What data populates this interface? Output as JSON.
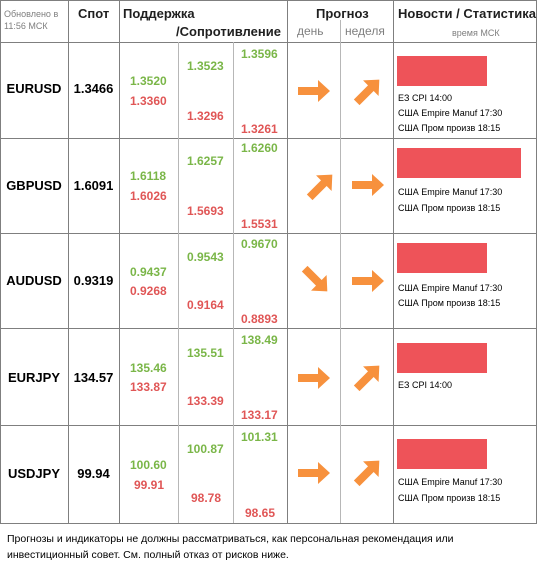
{
  "header": {
    "updated": "Обновлено в 11:56 МСК",
    "spot": "Спот",
    "support": "Поддержка",
    "resistance": "/Сопротивление",
    "forecast": "Прогноз",
    "day": "день",
    "week": "неделя",
    "news": "Новости / Статистика",
    "time_note": "время МСК"
  },
  "rows": [
    {
      "pair": "EURUSD",
      "spot": "1.3466",
      "s1": "1.3520",
      "s2": "1.3360",
      "s3": "1.3523",
      "s4": "1.3296",
      "s5": "1.3596",
      "s6": "1.3261",
      "day_arrow": "right-arrow-icon",
      "week_arrow": "up-right-arrow-icon",
      "news_bar_level": 0.73,
      "news": [
        "EЗ CPI 14:00",
        "США Empire Manuf 17:30",
        "США Пром произв 18:15"
      ]
    },
    {
      "pair": "GBPUSD",
      "spot": "1.6091",
      "s1": "1.6118",
      "s2": "1.6026",
      "s3": "1.6257",
      "s4": "1.5693",
      "s5": "1.6260",
      "s6": "1.5531",
      "day_arrow": "up-right-arrow-icon",
      "week_arrow": "right-arrow-icon",
      "news_bar_level": 1.0,
      "news": [
        "США Empire Manuf 17:30",
        "США Пром произв 18:15"
      ]
    },
    {
      "pair": "AUDUSD",
      "spot": "0.9319",
      "s1": "0.9437",
      "s2": "0.9268",
      "s3": "0.9543",
      "s4": "0.9164",
      "s5": "0.9670",
      "s6": "0.8893",
      "day_arrow": "down-right-arrow-icon",
      "week_arrow": "right-arrow-icon",
      "news_bar_level": 0.73,
      "news": [
        "США Empire Manuf 17:30",
        "США Пром произв 18:15"
      ]
    },
    {
      "pair": "EURJPY",
      "spot": "134.57",
      "s1": "135.46",
      "s2": "133.87",
      "s3": "135.51",
      "s4": "133.39",
      "s5": "138.49",
      "s6": "133.17",
      "day_arrow": "right-arrow-icon",
      "week_arrow": "up-right-arrow-icon",
      "news_bar_level": 0.73,
      "news": [
        "EЗ CPI 14:00"
      ]
    },
    {
      "pair": "USDJPY",
      "spot": "99.94",
      "s1": "100.60",
      "s2": "99.91",
      "s3": "100.87",
      "s4": "98.78",
      "s5": "101.31",
      "s6": "98.65",
      "day_arrow": "right-arrow-icon",
      "week_arrow": "up-right-arrow-icon",
      "news_bar_level": 0.73,
      "news": [
        "США Empire Manuf 17:30",
        "США Пром произв 18:15"
      ]
    }
  ],
  "colors": {
    "support": "#7ab648",
    "resistance": "#e05656",
    "arrow": "#f7913d",
    "news_bar": "#ee5359"
  },
  "disclaimer": "Прогнозы и индикаторы не должны рассматриваться, как персональная рекомендация или инвестиционный совет. См. полный отказ от рисков ниже."
}
